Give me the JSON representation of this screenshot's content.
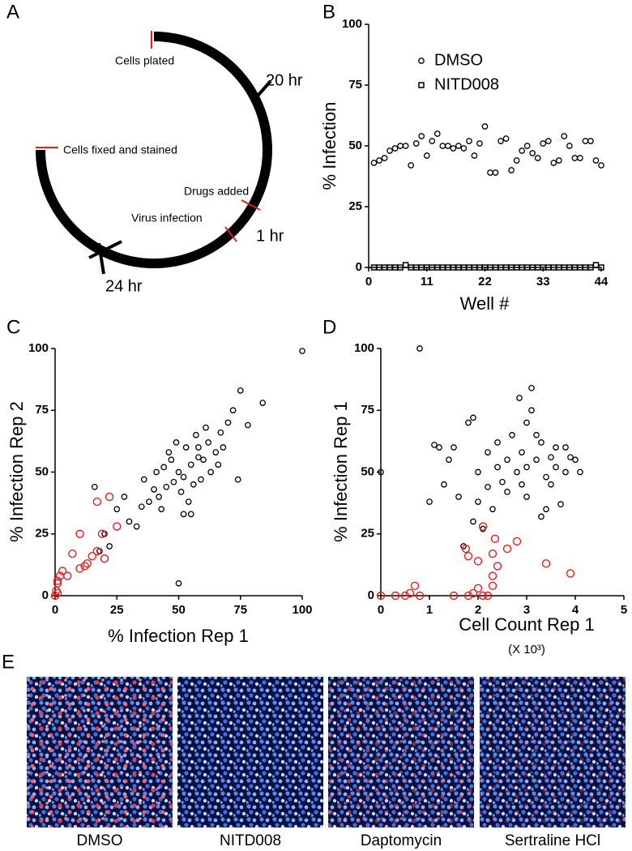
{
  "panel_labels": [
    "A",
    "B",
    "C",
    "D",
    "E"
  ],
  "diagram": {
    "labels": [
      "Cells plated",
      "20 hr",
      "Cells fixed and stained",
      "Drugs added",
      "Virus infection",
      "1 hr",
      "24 hr"
    ]
  },
  "chart_data": [
    {
      "type": "scatter",
      "y_label": "% Infection",
      "x_label": "Well #",
      "x": [
        1,
        2,
        3,
        4,
        5,
        6,
        7,
        8,
        9,
        10,
        11,
        12,
        13,
        14,
        15,
        16,
        17,
        18,
        19,
        20,
        21,
        22,
        23,
        24,
        25,
        26,
        27,
        28,
        29,
        30,
        31,
        32,
        33,
        34,
        35,
        36,
        37,
        38,
        39,
        40,
        41,
        42,
        43,
        44
      ],
      "xlim": [
        0,
        44
      ],
      "xticks": [
        0,
        11,
        22,
        33,
        44
      ],
      "ylim": [
        0,
        100
      ],
      "yticks": [
        0,
        25,
        50,
        75,
        100
      ],
      "legend": "upper left",
      "series": [
        {
          "name": "DMSO",
          "color": "#000000",
          "marker": "circle",
          "values": [
            43,
            44,
            45,
            48,
            49,
            50,
            50,
            42,
            51,
            54,
            46,
            52,
            55,
            50,
            50,
            49,
            50,
            49,
            52,
            46,
            51,
            58,
            39,
            39,
            52,
            53,
            40,
            44,
            48,
            50,
            47,
            45,
            51,
            52,
            43,
            44,
            54,
            50,
            45,
            45,
            52,
            52,
            44,
            42
          ]
        },
        {
          "name": "NITD008",
          "color": "#000000",
          "marker": "square",
          "values": [
            0,
            0,
            0,
            0,
            0,
            0,
            1,
            0,
            0,
            0,
            0,
            0,
            0,
            0,
            0,
            0,
            0,
            0,
            0,
            0,
            0,
            0,
            0,
            0,
            0,
            0,
            0,
            0,
            0,
            0,
            0,
            0,
            0,
            0,
            0,
            0,
            0,
            0,
            0,
            0,
            0,
            0,
            1,
            0
          ]
        }
      ]
    },
    {
      "type": "scatter",
      "y_label": "% Infection Rep 2",
      "x_label": "% Infection Rep 1",
      "xlim": [
        0,
        100
      ],
      "xticks": [
        0,
        25,
        50,
        75,
        100
      ],
      "ylim": [
        0,
        100
      ],
      "yticks": [
        0,
        25,
        50,
        75,
        100
      ],
      "series": [
        {
          "color": "#000000",
          "marker": "circle",
          "x": [
            50,
            52,
            55,
            48,
            45,
            58,
            60,
            42,
            40,
            53,
            47,
            56,
            62,
            38,
            35,
            65,
            51,
            44,
            57,
            63,
            30,
            33,
            67,
            70,
            72,
            75,
            84,
            78,
            100,
            50,
            25,
            28,
            20,
            22,
            18,
            36,
            54,
            68,
            46,
            59,
            49,
            61,
            41,
            55,
            52,
            74,
            16,
            66,
            43,
            58
          ],
          "values": [
            50,
            48,
            53,
            46,
            44,
            56,
            55,
            40,
            43,
            60,
            55,
            45,
            62,
            38,
            36,
            58,
            42,
            52,
            65,
            50,
            30,
            28,
            66,
            70,
            75,
            83,
            78,
            69,
            99,
            5,
            35,
            40,
            25,
            20,
            18,
            47,
            38,
            60,
            58,
            47,
            62,
            68,
            50,
            33,
            33,
            47,
            44,
            53,
            35,
            60
          ]
        },
        {
          "color": "#e02020",
          "marker": "circle",
          "x": [
            0,
            1,
            0.5,
            1,
            2,
            3,
            5,
            1,
            7,
            10,
            12,
            13,
            15,
            17,
            20,
            19,
            22,
            17,
            10,
            25
          ],
          "values": [
            0,
            1,
            2,
            5,
            8,
            10,
            8,
            6,
            17,
            11,
            12,
            13,
            16,
            18,
            15,
            25,
            40,
            38,
            25,
            28
          ]
        }
      ]
    },
    {
      "type": "scatter",
      "y_label": "% Infection Rep 1",
      "x_label": "Cell Count Rep 1",
      "x_label_note": "(X 10³)",
      "xlim": [
        0,
        5
      ],
      "xticks": [
        0,
        1,
        2,
        3,
        4,
        5
      ],
      "ylim": [
        0,
        100
      ],
      "yticks": [
        0,
        25,
        50,
        75,
        100
      ],
      "series": [
        {
          "color": "#000000",
          "marker": "circle",
          "x": [
            0,
            0.8,
            3.1,
            3,
            3.2,
            2.8,
            3.4,
            3.5,
            3.6,
            2.9,
            3.3,
            2.6,
            2.4,
            2.2,
            3.8,
            3.9,
            4,
            3,
            3.1,
            2.7,
            2.5,
            2,
            1.9,
            2.3,
            1.8,
            1.5,
            1.4,
            1.2,
            1.3,
            1.6,
            1.7,
            2.1,
            3.7,
            3.3,
            3.4,
            2.85,
            3.2,
            2.9,
            3.5,
            2,
            1.9,
            1,
            2.4,
            3,
            3.6,
            2.6,
            3.8,
            2.2,
            1.1,
            4.1
          ],
          "values": [
            50,
            100,
            84,
            52,
            55,
            50,
            48,
            56,
            60,
            45,
            62,
            42,
            52,
            58,
            50,
            56,
            55,
            70,
            75,
            65,
            46,
            38,
            30,
            35,
            70,
            60,
            55,
            60,
            45,
            40,
            20,
            27,
            37,
            32,
            35,
            80,
            65,
            58,
            45,
            50,
            72,
            38,
            62,
            40,
            52,
            55,
            60,
            44,
            61,
            50
          ]
        },
        {
          "color": "#e02020",
          "marker": "circle",
          "x": [
            0,
            0.5,
            0.6,
            0.7,
            0.8,
            0.3,
            1.5,
            1.8,
            1.9,
            2,
            2.1,
            2.2,
            2,
            2.1,
            2.3,
            2.35,
            2.4,
            2.3,
            2.6,
            2.8,
            3.4,
            3.9,
            2.3,
            1.75,
            1.8
          ],
          "values": [
            0,
            0,
            1,
            4,
            0,
            0,
            0,
            0,
            1,
            3,
            0,
            0,
            14,
            28,
            17,
            23,
            12,
            8,
            19,
            22,
            13,
            9,
            4,
            19,
            16
          ]
        }
      ]
    }
  ],
  "images": {
    "captions": [
      "DMSO",
      "NITD008",
      "Daptomycin",
      "Sertraline HCl"
    ]
  }
}
